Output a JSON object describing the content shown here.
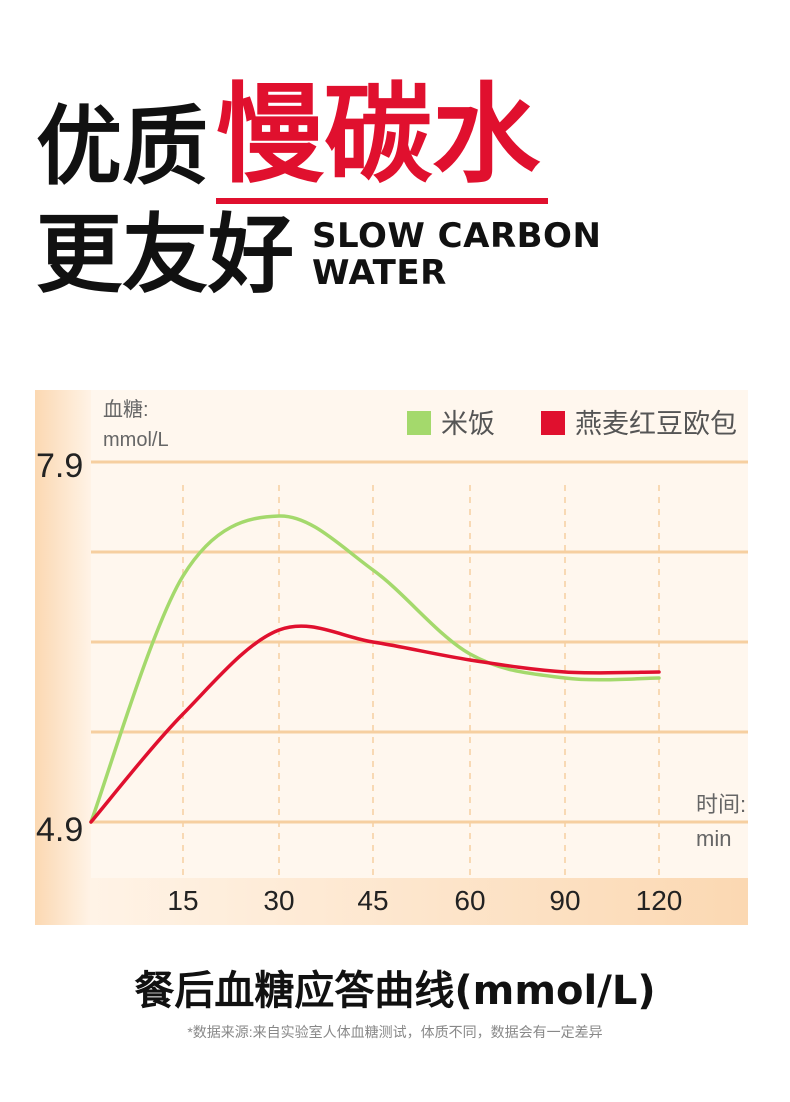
{
  "headline": {
    "line1_black": "优质",
    "line1_red": "慢碳水",
    "line2_black": "更友好",
    "english_line1": "SLOW CARBON",
    "english_line2": "WATER"
  },
  "colors": {
    "accent_red": "#e0102e",
    "rice_green": "#a4d96c",
    "bread_red": "#e0102e",
    "panel_bg": "#fff7ee",
    "grid": "#f6cfa0"
  },
  "chart_data": {
    "type": "line",
    "ylabel_line1": "血糖:",
    "ylabel_line2": "mmol/L",
    "xlabel_line1": "时间:",
    "xlabel_line2": "min",
    "y_tick_labels": [
      "7.9",
      "4.9"
    ],
    "ylim": [
      4.9,
      7.9
    ],
    "categories": [
      "15",
      "30",
      "45",
      "60",
      "90",
      "120"
    ],
    "legend_position": "top-right",
    "grid": true,
    "series": [
      {
        "name": "米饭",
        "color": "#a4d96c",
        "points": [
          [
            0,
            4.9
          ],
          [
            15,
            6.95
          ],
          [
            30,
            7.45
          ],
          [
            45,
            7.0
          ],
          [
            60,
            6.3
          ],
          [
            90,
            6.1
          ],
          [
            120,
            6.1
          ]
        ]
      },
      {
        "name": "燕麦红豆欧包",
        "color": "#e0102e",
        "points": [
          [
            0,
            4.9
          ],
          [
            15,
            5.8
          ],
          [
            30,
            6.5
          ],
          [
            45,
            6.4
          ],
          [
            60,
            6.25
          ],
          [
            90,
            6.15
          ],
          [
            120,
            6.15
          ]
        ]
      }
    ]
  },
  "footer": {
    "title": "餐后血糖应答曲线(mmol/L)",
    "note": "*数据来源:来自实验室人体血糖测试，体质不同，数据会有一定差异"
  }
}
